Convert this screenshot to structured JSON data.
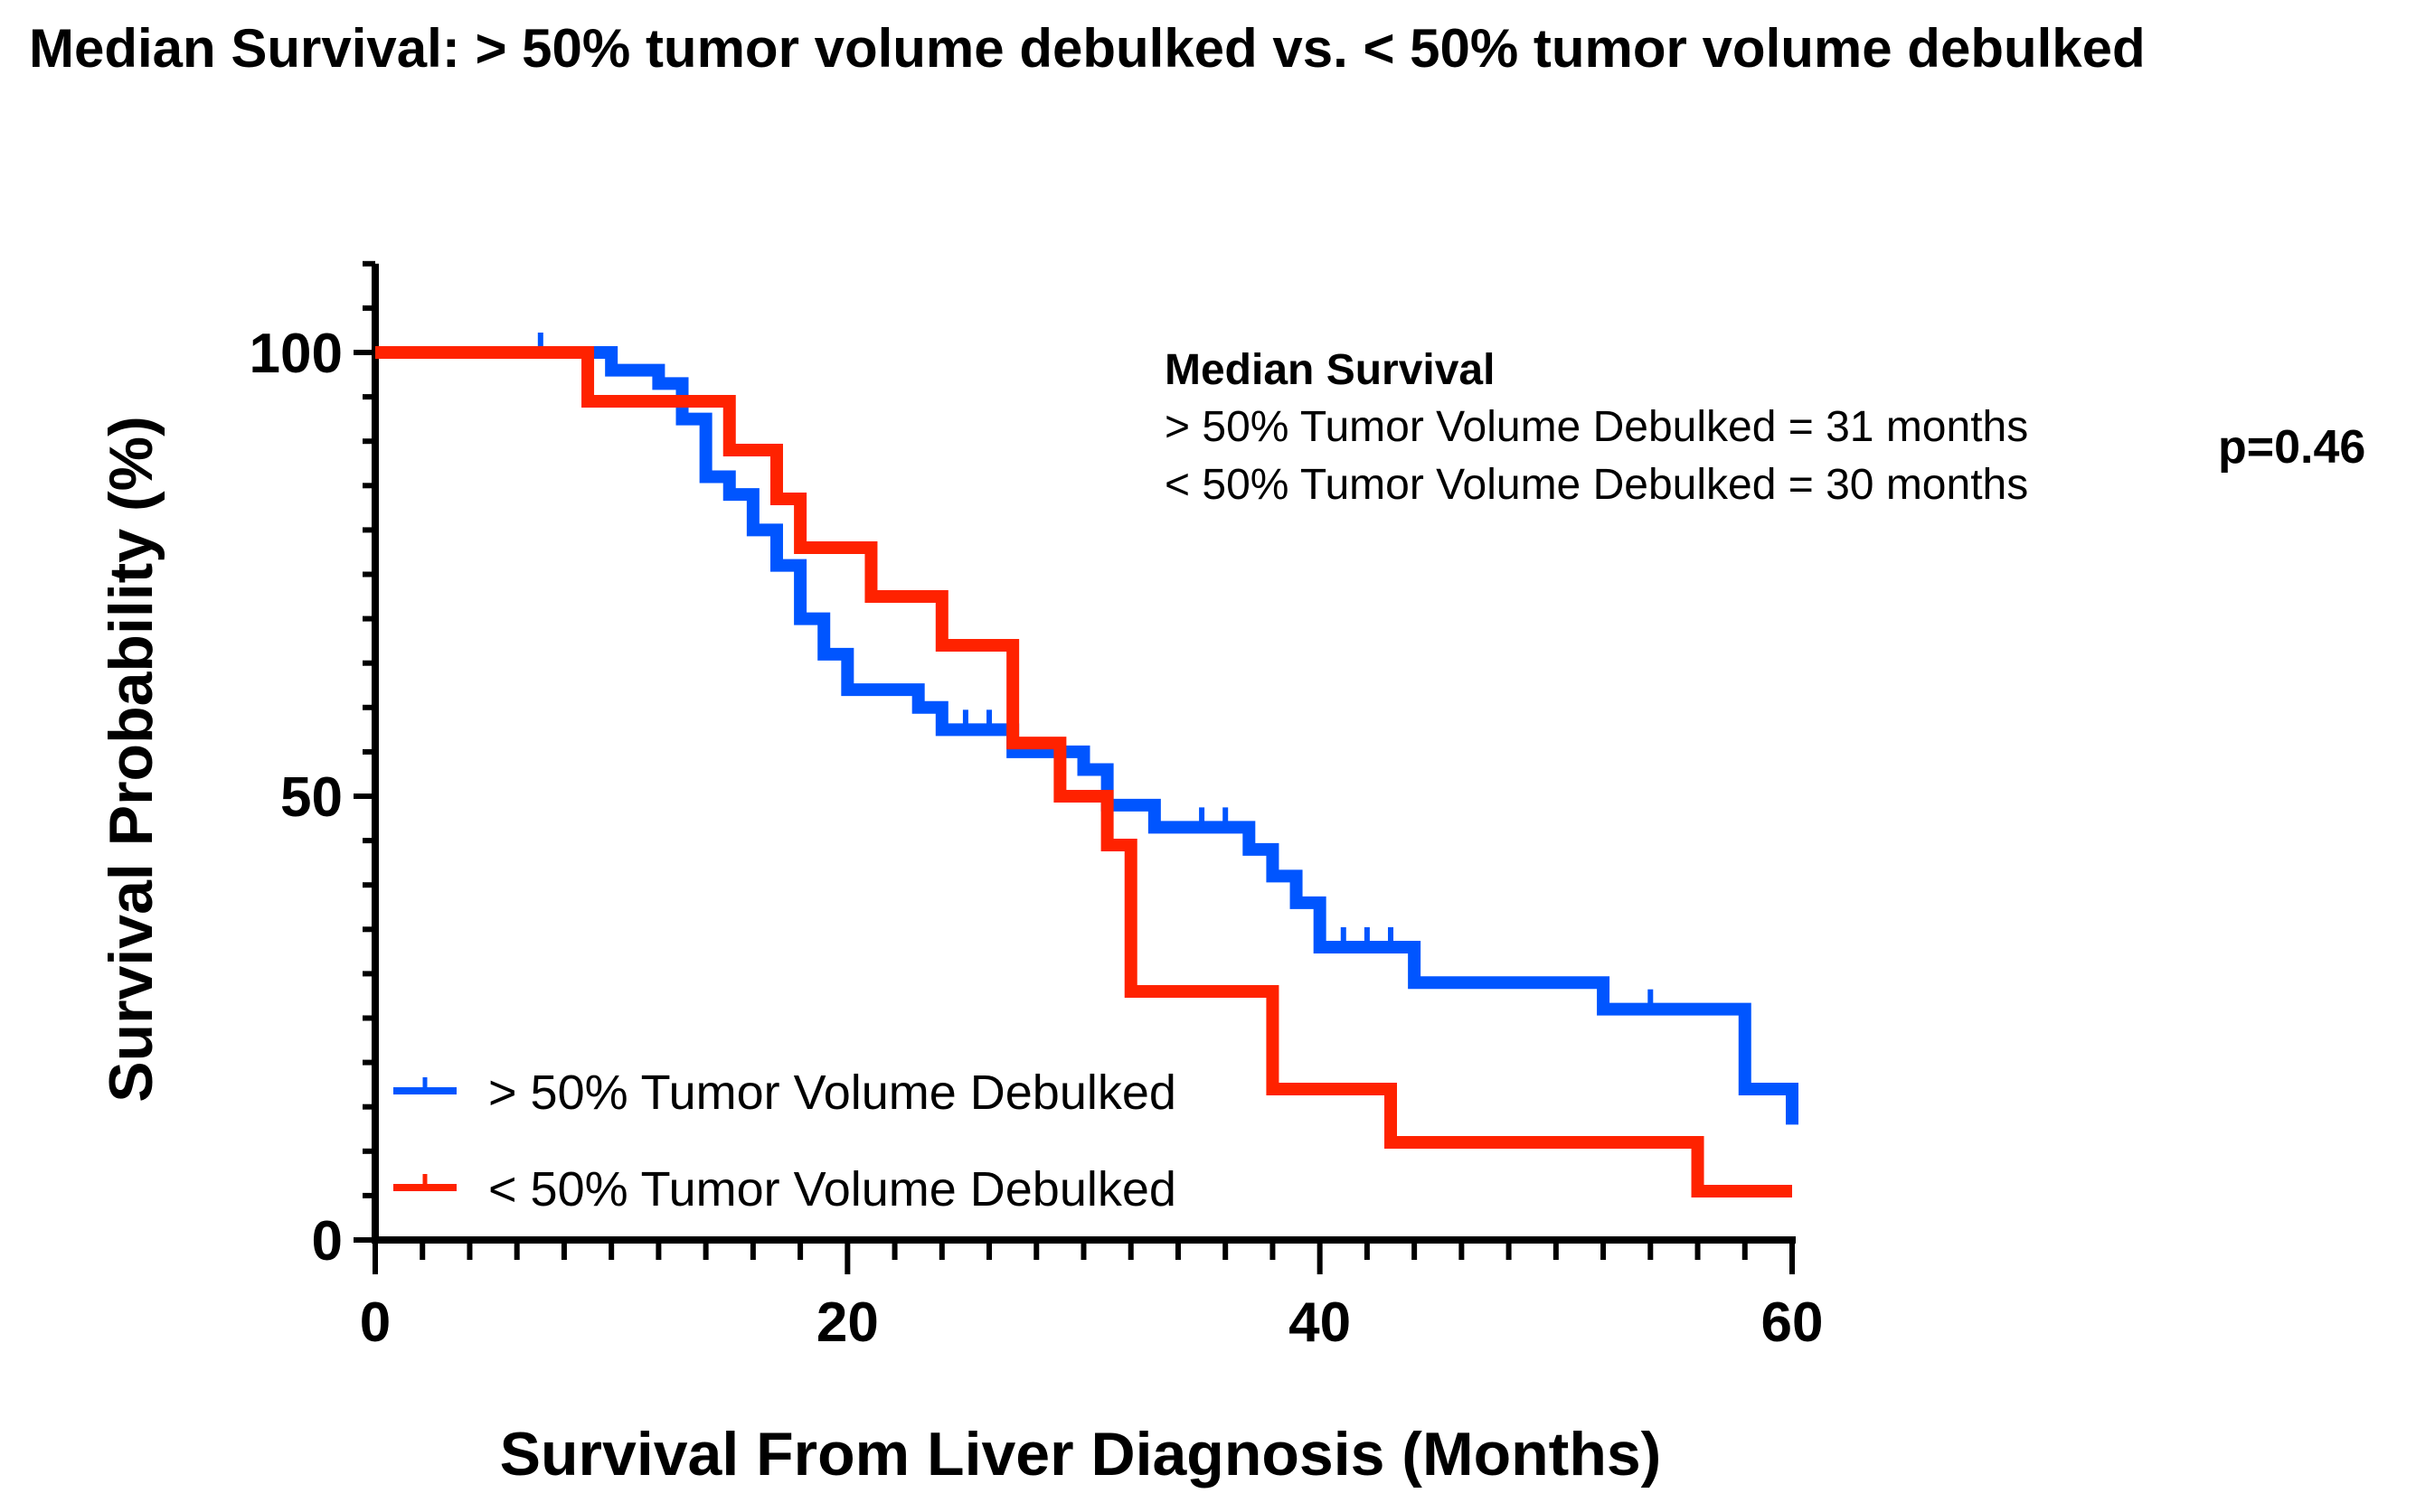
{
  "chart_data": {
    "type": "line",
    "subtype": "kaplan-meier step",
    "title": "Median Survival: > 50% tumor volume debulked vs. < 50% tumor volume debulked",
    "xlabel": "Survival From Liver Diagnosis (Months)",
    "ylabel": "Survival Probability (%)",
    "xlim": [
      0,
      60
    ],
    "ylim": [
      0,
      110
    ],
    "xticks": [
      0,
      20,
      40,
      60
    ],
    "yticks": [
      0,
      50,
      100
    ],
    "grid": false,
    "legend_position": "bottom-left",
    "series": [
      {
        "name": "> 50% Tumor Volume Debulked",
        "color": "#0055ff",
        "steps": [
          [
            0,
            100
          ],
          [
            10,
            98
          ],
          [
            12,
            96.5
          ],
          [
            13,
            92.5
          ],
          [
            14,
            86
          ],
          [
            15,
            84
          ],
          [
            16,
            80
          ],
          [
            17,
            76
          ],
          [
            18,
            70
          ],
          [
            19,
            66
          ],
          [
            20,
            62
          ],
          [
            23,
            60
          ],
          [
            24,
            57.5
          ],
          [
            27,
            55
          ],
          [
            30,
            53
          ],
          [
            31,
            49
          ],
          [
            33,
            46.5
          ],
          [
            37,
            44
          ],
          [
            38,
            41
          ],
          [
            39,
            38
          ],
          [
            40,
            33
          ],
          [
            44,
            29
          ],
          [
            52,
            26
          ],
          [
            58,
            17
          ],
          [
            60,
            13
          ]
        ],
        "censored": [
          [
            7,
            100
          ],
          [
            25,
            57.5
          ],
          [
            26,
            57.5
          ],
          [
            35,
            46.5
          ],
          [
            36,
            46.5
          ],
          [
            41,
            33
          ],
          [
            42,
            33
          ],
          [
            43,
            33
          ],
          [
            54,
            26
          ]
        ]
      },
      {
        "name": "< 50% Tumor Volume Debulked",
        "color": "#ff2200",
        "steps": [
          [
            0,
            100
          ],
          [
            9,
            94.5
          ],
          [
            15,
            89
          ],
          [
            17,
            83.5
          ],
          [
            18,
            78
          ],
          [
            21,
            72.5
          ],
          [
            24,
            67
          ],
          [
            27,
            56
          ],
          [
            29,
            50
          ],
          [
            31,
            44.5
          ],
          [
            32,
            28
          ],
          [
            38,
            17
          ],
          [
            43,
            11
          ],
          [
            56,
            5.5
          ],
          [
            60,
            5.5
          ]
        ],
        "censored": []
      }
    ],
    "annotation": {
      "heading": "Median Survival",
      "lines": [
        "> 50% Tumor Volume Debulked = 31 months",
        "< 50% Tumor Volume Debulked = 30 months"
      ],
      "p_value": "p=0.46"
    }
  }
}
